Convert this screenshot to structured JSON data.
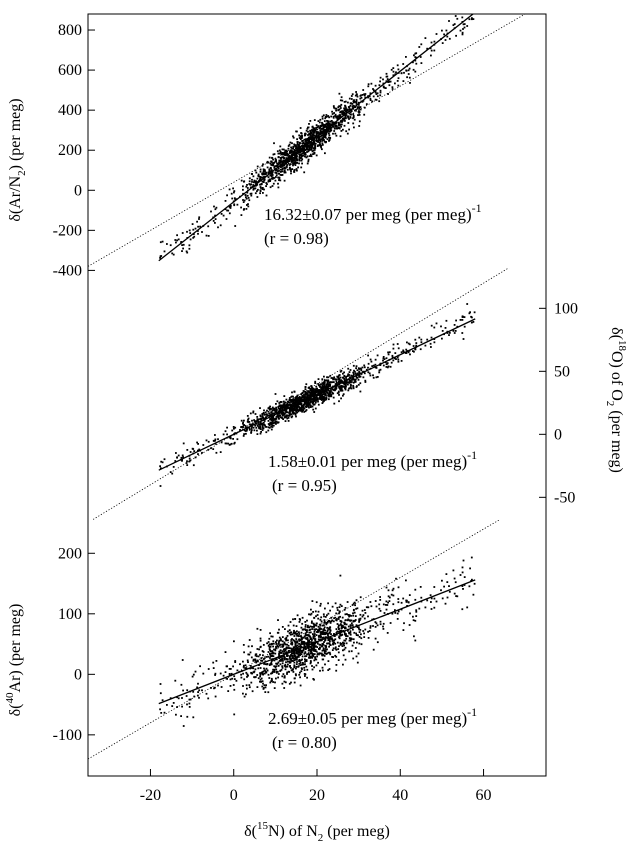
{
  "chart_data": {
    "type": "scatter",
    "x_axis": {
      "label_prefix": "δ(",
      "label_sup": "15",
      "label_mid": "N) of N",
      "label_sub": "2",
      "label_suffix": "  (per meg)",
      "range": [
        -35,
        75
      ],
      "ticks": [
        -20,
        0,
        20,
        40,
        60
      ],
      "tick_labels": [
        "-20",
        "0",
        "20",
        "40",
        "60"
      ]
    },
    "panels": [
      {
        "id": "ar-n2",
        "y_side": "left",
        "y_range": [
          -400,
          870
        ],
        "ticks": [
          -400,
          -200,
          0,
          200,
          400,
          600,
          800
        ],
        "tick_labels": [
          "-400",
          "-200",
          "0",
          "200",
          "400",
          "600",
          "800"
        ],
        "ylabel_prefix": "δ(Ar/N",
        "ylabel_sub": "2",
        "ylabel_suffix": ")  (per meg)",
        "fit_slope": 16.32,
        "fit_intercept": -58,
        "fit_x_range": [
          -18,
          58
        ],
        "reference_slope": 12.0,
        "reference_intercept": 40,
        "noise": 38,
        "annotation_main": "16.32±0.07 per meg (per meg)",
        "annotation_sup": "-1",
        "annotation_r": "(r = 0.98)"
      },
      {
        "id": "o18",
        "y_side": "right",
        "y_range": [
          -70,
          125
        ],
        "ticks": [
          -50,
          0,
          50,
          100
        ],
        "tick_labels": [
          "-50",
          "0",
          "50",
          "100"
        ],
        "ylabel_prefix": "δ(",
        "ylabel_sup": "18",
        "ylabel_mid": "O) of O",
        "ylabel_sub": "2",
        "ylabel_suffix": "  (per meg)",
        "fit_slope": 1.58,
        "fit_intercept": 0,
        "fit_x_range": [
          -18,
          58
        ],
        "reference_slope": 2.0,
        "reference_intercept": 0,
        "noise": 4.5,
        "annotation_main": "1.58±0.01 per meg (per meg)",
        "annotation_sup": "-1",
        "annotation_r": "(r = 0.95)"
      },
      {
        "id": "ar40",
        "y_side": "left",
        "y_range": [
          -160,
          260
        ],
        "ticks": [
          -100,
          0,
          100,
          200
        ],
        "tick_labels": [
          "-100",
          "0",
          "100",
          "200"
        ],
        "ylabel_prefix": "δ(",
        "ylabel_sup": "40",
        "ylabel_suffix": "Ar)  (per meg)",
        "fit_slope": 2.69,
        "fit_intercept": 0,
        "fit_x_range": [
          -18,
          58
        ],
        "reference_slope": 4.0,
        "reference_intercept": 0,
        "noise": 22,
        "annotation_main": "2.69±0.05 per meg (per meg)",
        "annotation_sup": "-1",
        "annotation_r": "(r = 0.80)"
      }
    ],
    "scatter_x_distribution": {
      "min": -18,
      "max": 58,
      "mode": 15,
      "count": 1400
    }
  }
}
